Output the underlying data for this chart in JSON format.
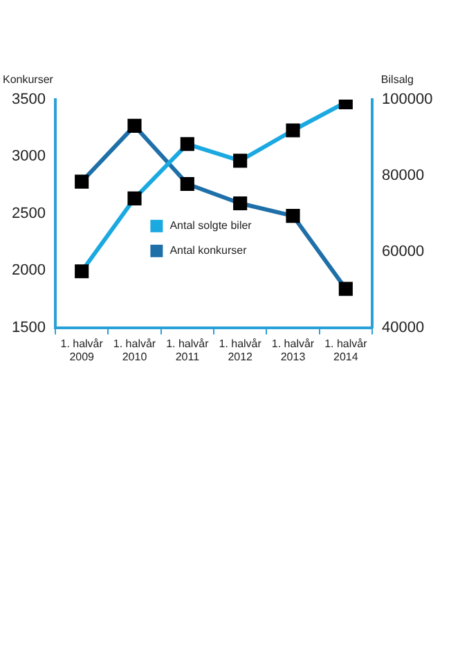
{
  "chart_data": {
    "type": "line",
    "categories": [
      "1. halvår\n2009",
      "1. halvår\n2010",
      "1. halvår\n2011",
      "1. halvår\n2012",
      "1. halvår\n2013",
      "1. halvår\n2014"
    ],
    "series": [
      {
        "name": "Antal solgte biler",
        "color": "#1ba9e1",
        "axis": "y2",
        "values": [
          54800,
          74000,
          88300,
          83900,
          91900,
          99300
        ]
      },
      {
        "name": "Antal konkurser",
        "color": "#1f6fa8",
        "values": [
          2780,
          3270,
          2760,
          2590,
          2480,
          1840
        ]
      }
    ],
    "ylabel": "Konkurser",
    "y2label": "Bilsalg",
    "ylim": [
      1500,
      3500
    ],
    "yticks": [
      1500,
      2000,
      2500,
      3000,
      3500
    ],
    "y2lim": [
      40000,
      100000
    ],
    "y2ticks": [
      40000,
      60000,
      80000,
      100000
    ],
    "marker": "square",
    "line_style": "solid",
    "grid": false,
    "legend": "center left"
  }
}
